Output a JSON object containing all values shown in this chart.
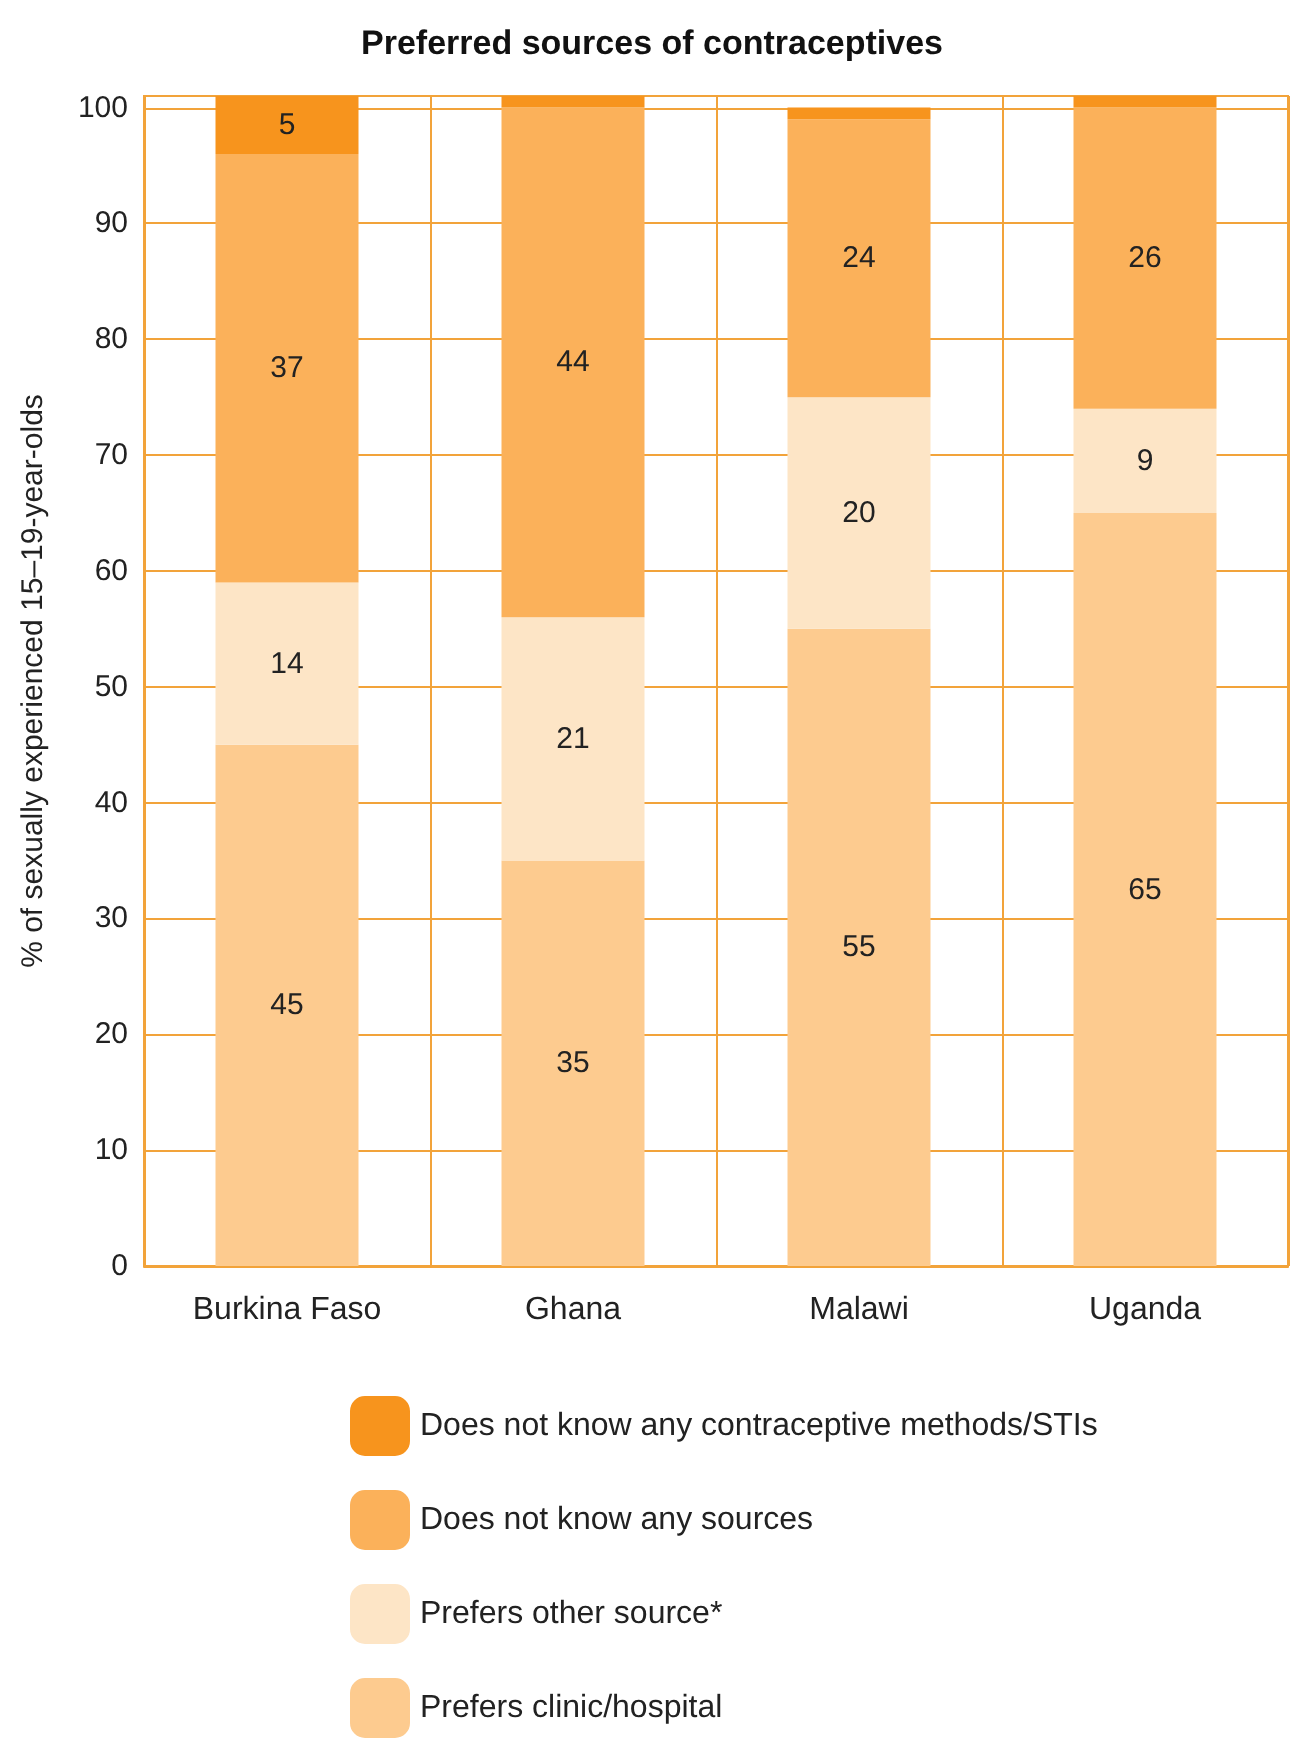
{
  "chart_data": {
    "type": "bar",
    "title": "Preferred sources of contraceptives",
    "ylabel": "% of sexually experienced 15–19-year-olds",
    "categories": [
      "Burkina Faso",
      "Ghana",
      "Malawi",
      "Uganda"
    ],
    "stacked": true,
    "series": [
      {
        "name": "Prefers clinic/hospital",
        "color": "#fdcb8f",
        "values": [
          45,
          35,
          55,
          65
        ],
        "value_labels": [
          "45",
          "35",
          "55",
          "65"
        ]
      },
      {
        "name": "Prefers other source*",
        "color": "#fde5c6",
        "values": [
          14,
          21,
          20,
          9
        ],
        "value_labels": [
          "14",
          "21",
          "20",
          "9"
        ]
      },
      {
        "name": "Does not know any sources",
        "color": "#fbb15a",
        "values": [
          37,
          44,
          24,
          26
        ],
        "value_labels": [
          "37",
          "44",
          "24",
          "26"
        ]
      },
      {
        "name": "Does not know any contraceptive methods/STIs",
        "color": "#f7941d",
        "values": [
          5,
          1,
          1,
          1
        ],
        "value_labels": [
          "5",
          null,
          null,
          null
        ]
      }
    ],
    "ylim": [
      0,
      101
    ],
    "yticks": [
      0,
      10,
      20,
      30,
      40,
      50,
      60,
      70,
      80,
      90,
      100
    ],
    "grid": true,
    "legend": "bottom"
  }
}
